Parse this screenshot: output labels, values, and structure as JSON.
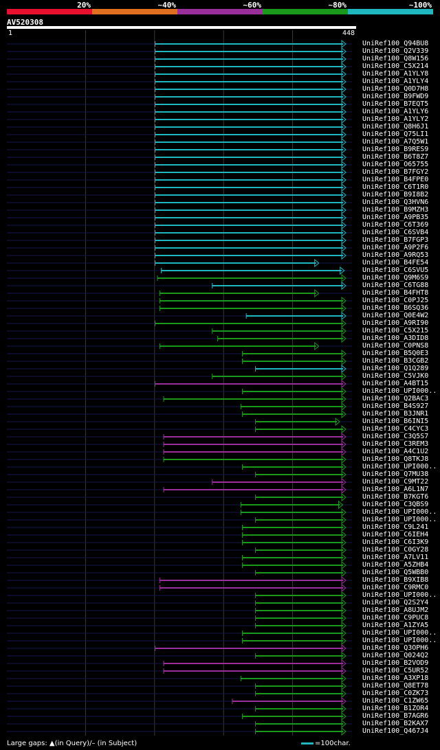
{
  "legend": {
    "segments": [
      {
        "label": "20%",
        "color": "#e8102e"
      },
      {
        "label": "~40%",
        "color": "#e07020"
      },
      {
        "label": "~60%",
        "color": "#9a2e9a"
      },
      {
        "label": "~80%",
        "color": "#1a9a1a"
      },
      {
        "label": "~100%",
        "color": "#20b8c0"
      }
    ]
  },
  "query": {
    "title": "AV520308",
    "start_label": "1",
    "end_label": "448",
    "length": 448
  },
  "colors": {
    "line_dark": "#14164a",
    "grid": "#3a3a3a",
    "c100": "#20b8c0",
    "c80": "#1a9a1a",
    "c60": "#9a2e9a"
  },
  "hits": [
    {
      "name": "UniRef100_Q94BU8",
      "start": 193,
      "end": 440,
      "color": "c100"
    },
    {
      "name": "UniRef100_Q2V339",
      "start": 193,
      "end": 440,
      "color": "c100"
    },
    {
      "name": "UniRef100_Q8W156",
      "start": 193,
      "end": 440,
      "color": "c100"
    },
    {
      "name": "UniRef100_C5X214",
      "start": 193,
      "end": 440,
      "color": "c100"
    },
    {
      "name": "UniRef100_A1YLY8",
      "start": 193,
      "end": 440,
      "color": "c100"
    },
    {
      "name": "UniRef100_A1YLY4",
      "start": 193,
      "end": 440,
      "color": "c100"
    },
    {
      "name": "UniRef100_Q0D7H8",
      "start": 193,
      "end": 440,
      "color": "c100"
    },
    {
      "name": "UniRef100_B9FWD9",
      "start": 193,
      "end": 440,
      "color": "c100"
    },
    {
      "name": "UniRef100_B7EQT5",
      "start": 193,
      "end": 440,
      "color": "c100"
    },
    {
      "name": "UniRef100_A1YLY6",
      "start": 193,
      "end": 440,
      "color": "c100"
    },
    {
      "name": "UniRef100_A1YLY2",
      "start": 193,
      "end": 440,
      "color": "c100"
    },
    {
      "name": "UniRef100_Q8H6J1",
      "start": 193,
      "end": 440,
      "color": "c100"
    },
    {
      "name": "UniRef100_Q75LI1",
      "start": 193,
      "end": 440,
      "color": "c100"
    },
    {
      "name": "UniRef100_A7Q5W1",
      "start": 193,
      "end": 440,
      "color": "c100"
    },
    {
      "name": "UniRef100_B9RES9",
      "start": 193,
      "end": 440,
      "color": "c100"
    },
    {
      "name": "UniRef100_B6T8Z7",
      "start": 193,
      "end": 440,
      "color": "c100"
    },
    {
      "name": "UniRef100_O65755",
      "start": 193,
      "end": 440,
      "color": "c100"
    },
    {
      "name": "UniRef100_B7FGY2",
      "start": 193,
      "end": 440,
      "color": "c100"
    },
    {
      "name": "UniRef100_B4FPE0",
      "start": 193,
      "end": 440,
      "color": "c100"
    },
    {
      "name": "UniRef100_C6T1R0",
      "start": 193,
      "end": 440,
      "color": "c100"
    },
    {
      "name": "UniRef100_B9I8B2",
      "start": 193,
      "end": 440,
      "color": "c100"
    },
    {
      "name": "UniRef100_Q3HVN6",
      "start": 193,
      "end": 440,
      "color": "c100"
    },
    {
      "name": "UniRef100_B9MZH3",
      "start": 193,
      "end": 440,
      "color": "c100"
    },
    {
      "name": "UniRef100_A9PB35",
      "start": 193,
      "end": 440,
      "color": "c100"
    },
    {
      "name": "UniRef100_C6T369",
      "start": 193,
      "end": 440,
      "color": "c100"
    },
    {
      "name": "UniRef100_C6SVB4",
      "start": 193,
      "end": 440,
      "color": "c100"
    },
    {
      "name": "UniRef100_B7FGP3",
      "start": 193,
      "end": 440,
      "color": "c100"
    },
    {
      "name": "UniRef100_A9P2F6",
      "start": 193,
      "end": 440,
      "color": "c100"
    },
    {
      "name": "UniRef100_A9RQ53",
      "start": 193,
      "end": 440,
      "color": "c100"
    },
    {
      "name": "UniRef100_B4FE54",
      "start": 193,
      "end": 405,
      "color": "c100"
    },
    {
      "name": "UniRef100_C6SVU5",
      "start": 201,
      "end": 438,
      "color": "c100"
    },
    {
      "name": "UniRef100_Q9M6S9",
      "start": 196,
      "end": 440,
      "color": "c80"
    },
    {
      "name": "UniRef100_C6TG88",
      "start": 267,
      "end": 440,
      "color": "c100"
    },
    {
      "name": "UniRef100_B4FHT8",
      "start": 199,
      "end": 405,
      "color": "c80"
    },
    {
      "name": "UniRef100_C0PJ25",
      "start": 199,
      "end": 440,
      "color": "c80"
    },
    {
      "name": "UniRef100_B6SQ36",
      "start": 199,
      "end": 440,
      "color": "c80"
    },
    {
      "name": "UniRef100_Q0E4W2",
      "start": 311,
      "end": 440,
      "color": "c100"
    },
    {
      "name": "UniRef100_A9RI90",
      "start": 193,
      "end": 440,
      "color": "c80"
    },
    {
      "name": "UniRef100_C5X215",
      "start": 267,
      "end": 440,
      "color": "c80"
    },
    {
      "name": "UniRef100_A3DID8",
      "start": 274,
      "end": 440,
      "color": "c80"
    },
    {
      "name": "UniRef100_C0PNS8",
      "start": 199,
      "end": 405,
      "color": "c80"
    },
    {
      "name": "UniRef100_B5Q0E3",
      "start": 306,
      "end": 440,
      "color": "c80"
    },
    {
      "name": "UniRef100_B3CGB2",
      "start": 306,
      "end": 440,
      "color": "c80"
    },
    {
      "name": "UniRef100_Q1Q289",
      "start": 323,
      "end": 440,
      "color": "c100"
    },
    {
      "name": "UniRef100_C5VJK0",
      "start": 267,
      "end": 440,
      "color": "c80"
    },
    {
      "name": "UniRef100_A4BT15",
      "start": 193,
      "end": 440,
      "color": "c60"
    },
    {
      "name": "UniRef100_UPI000..",
      "start": 306,
      "end": 440,
      "color": "c80"
    },
    {
      "name": "UniRef100_Q2BAC3",
      "start": 204,
      "end": 440,
      "color": "c80"
    },
    {
      "name": "UniRef100_B4S927",
      "start": 304,
      "end": 440,
      "color": "c80"
    },
    {
      "name": "UniRef100_B3JNR1",
      "start": 306,
      "end": 440,
      "color": "c80"
    },
    {
      "name": "UniRef100_B6INI5",
      "start": 323,
      "end": 432,
      "color": "c80"
    },
    {
      "name": "UniRef100_C4CYC3",
      "start": 323,
      "end": 440,
      "color": "c80"
    },
    {
      "name": "UniRef100_C3Q5S7",
      "start": 204,
      "end": 440,
      "color": "c60"
    },
    {
      "name": "UniRef100_C3REM3",
      "start": 204,
      "end": 440,
      "color": "c60"
    },
    {
      "name": "UniRef100_A4C1U2",
      "start": 204,
      "end": 440,
      "color": "c60"
    },
    {
      "name": "UniRef100_Q8TKJ8",
      "start": 204,
      "end": 440,
      "color": "c80"
    },
    {
      "name": "UniRef100_UPI000..",
      "start": 306,
      "end": 440,
      "color": "c80"
    },
    {
      "name": "UniRef100_Q7MU38",
      "start": 323,
      "end": 440,
      "color": "c80"
    },
    {
      "name": "UniRef100_C9MT22",
      "start": 267,
      "end": 440,
      "color": "c60"
    },
    {
      "name": "UniRef100_A6L1N7",
      "start": 204,
      "end": 440,
      "color": "c60"
    },
    {
      "name": "UniRef100_B7KGT6",
      "start": 323,
      "end": 440,
      "color": "c80"
    },
    {
      "name": "UniRef100_C3QBS9",
      "start": 304,
      "end": 436,
      "color": "c80"
    },
    {
      "name": "UniRef100_UPI000..",
      "start": 304,
      "end": 440,
      "color": "c80"
    },
    {
      "name": "UniRef100_UPI000..",
      "start": 323,
      "end": 440,
      "color": "c80"
    },
    {
      "name": "UniRef100_C9L241",
      "start": 306,
      "end": 440,
      "color": "c80"
    },
    {
      "name": "UniRef100_C6IEH4",
      "start": 306,
      "end": 440,
      "color": "c80"
    },
    {
      "name": "UniRef100_C6I3K9",
      "start": 306,
      "end": 440,
      "color": "c80"
    },
    {
      "name": "UniRef100_C0GY28",
      "start": 323,
      "end": 440,
      "color": "c80"
    },
    {
      "name": "UniRef100_A7LV11",
      "start": 306,
      "end": 440,
      "color": "c80"
    },
    {
      "name": "UniRef100_A5ZHB4",
      "start": 306,
      "end": 440,
      "color": "c80"
    },
    {
      "name": "UniRef100_Q5WBB0",
      "start": 323,
      "end": 440,
      "color": "c80"
    },
    {
      "name": "UniRef100_B9XIB8",
      "start": 199,
      "end": 440,
      "color": "c60"
    },
    {
      "name": "UniRef100_C9RMC0",
      "start": 199,
      "end": 440,
      "color": "c60"
    },
    {
      "name": "UniRef100_UPI000..",
      "start": 323,
      "end": 440,
      "color": "c80"
    },
    {
      "name": "UniRef100_Q2S2Y4",
      "start": 323,
      "end": 440,
      "color": "c80"
    },
    {
      "name": "UniRef100_A8UJM2",
      "start": 323,
      "end": 440,
      "color": "c80"
    },
    {
      "name": "UniRef100_C9PUC8",
      "start": 323,
      "end": 440,
      "color": "c80"
    },
    {
      "name": "UniRef100_A1ZYA5",
      "start": 323,
      "end": 440,
      "color": "c80"
    },
    {
      "name": "UniRef100_UPI000..",
      "start": 306,
      "end": 440,
      "color": "c80"
    },
    {
      "name": "UniRef100_UPI000..",
      "start": 306,
      "end": 440,
      "color": "c80"
    },
    {
      "name": "UniRef100_Q3OPH6",
      "start": 193,
      "end": 440,
      "color": "c60"
    },
    {
      "name": "UniRef100_Q024Q2",
      "start": 323,
      "end": 440,
      "color": "c80"
    },
    {
      "name": "UniRef100_B2VOD9",
      "start": 204,
      "end": 440,
      "color": "c60"
    },
    {
      "name": "UniRef100_C5UR52",
      "start": 204,
      "end": 440,
      "color": "c60"
    },
    {
      "name": "UniRef100_A3XP18",
      "start": 304,
      "end": 440,
      "color": "c80"
    },
    {
      "name": "UniRef100_Q8ET78",
      "start": 323,
      "end": 440,
      "color": "c80"
    },
    {
      "name": "UniRef100_C0ZK73",
      "start": 323,
      "end": 440,
      "color": "c80"
    },
    {
      "name": "UniRef100_C1ZW65",
      "start": 293,
      "end": 440,
      "color": "c60"
    },
    {
      "name": "UniRef100_B1ZOR4",
      "start": 323,
      "end": 440,
      "color": "c80"
    },
    {
      "name": "UniRef100_B7AGR6",
      "start": 306,
      "end": 440,
      "color": "c80"
    },
    {
      "name": "UniRef100_B2KAX7",
      "start": 323,
      "end": 440,
      "color": "c80"
    },
    {
      "name": "UniRef100_Q467J4",
      "start": 323,
      "end": 440,
      "color": "c80"
    }
  ],
  "footer": {
    "gaps_text": "Large gaps: ▲(in Query)/– (in Subject)",
    "scale_text": "=100char."
  }
}
